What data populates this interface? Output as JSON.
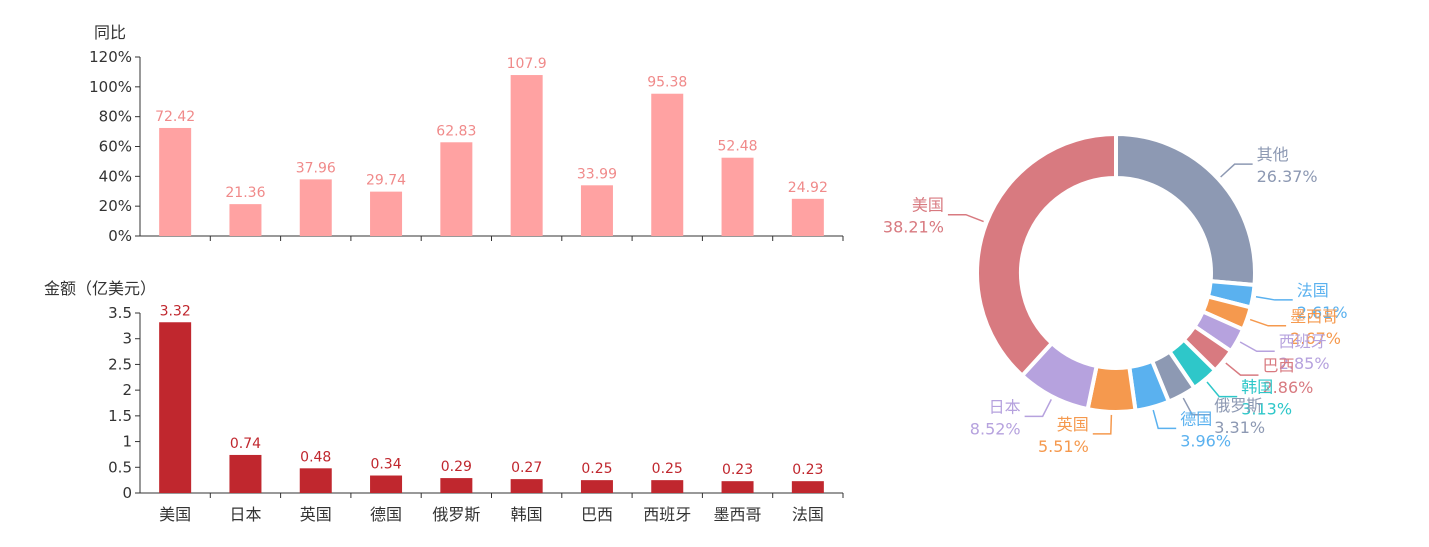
{
  "chart_data": [
    {
      "type": "bar",
      "ylabel": "同比",
      "categories": [
        "美国",
        "日本",
        "英国",
        "德国",
        "俄罗斯",
        "韩国",
        "巴西",
        "西班牙",
        "墨西哥",
        "法国"
      ],
      "values": [
        72.42,
        21.36,
        37.96,
        29.74,
        62.83,
        107.9,
        33.99,
        95.38,
        52.48,
        24.92
      ],
      "value_labels": [
        "72.42",
        "21.36",
        "37.96",
        "29.74",
        "62.83",
        "107.9",
        "33.99",
        "95.38",
        "52.48",
        "24.92"
      ],
      "ylim": [
        0,
        120
      ],
      "yticks": [
        "0%",
        "20%",
        "40%",
        "60%",
        "80%",
        "100%",
        "120%"
      ],
      "color": "#ffa2a2",
      "label_color": "#f08a8a",
      "grid": false
    },
    {
      "type": "bar",
      "ylabel": "金额（亿美元）",
      "categories": [
        "美国",
        "日本",
        "英国",
        "德国",
        "俄罗斯",
        "韩国",
        "巴西",
        "西班牙",
        "墨西哥",
        "法国"
      ],
      "values": [
        3.32,
        0.74,
        0.48,
        0.34,
        0.29,
        0.27,
        0.25,
        0.25,
        0.23,
        0.23
      ],
      "value_labels": [
        "3.32",
        "0.74",
        "0.48",
        "0.34",
        "0.29",
        "0.27",
        "0.25",
        "0.25",
        "0.23",
        "0.23"
      ],
      "ylim": [
        0,
        3.5
      ],
      "yticks": [
        "0",
        "0.5",
        "1",
        "1.5",
        "2",
        "2.5",
        "3",
        "3.5"
      ],
      "color": "#c0272e",
      "label_color": "#c0272e",
      "grid": false
    },
    {
      "type": "pie",
      "donut": true,
      "slices": [
        {
          "name": "其他",
          "value": 26.37,
          "label": "26.37%",
          "color": "#8d99b3"
        },
        {
          "name": "法国",
          "value": 2.61,
          "label": "2.61%",
          "color": "#5ab1ef"
        },
        {
          "name": "墨西哥",
          "value": 2.67,
          "label": "2.67%",
          "color": "#f5994e"
        },
        {
          "name": "西班牙",
          "value": 2.85,
          "label": "2.85%",
          "color": "#b6a2de"
        },
        {
          "name": "巴西",
          "value": 2.86,
          "label": "2.86%",
          "color": "#d87a80"
        },
        {
          "name": "韩国",
          "value": 3.13,
          "label": "3.13%",
          "color": "#2ec7c9"
        },
        {
          "name": "俄罗斯",
          "value": 3.31,
          "label": "3.31%",
          "color": "#8d99b3"
        },
        {
          "name": "德国",
          "value": 3.96,
          "label": "3.96%",
          "color": "#5ab1ef"
        },
        {
          "name": "英国",
          "value": 5.51,
          "label": "5.51%",
          "color": "#f5994e"
        },
        {
          "name": "日本",
          "value": 8.52,
          "label": "8.52%",
          "color": "#b6a2de"
        },
        {
          "name": "美国",
          "value": 38.21,
          "label": "38.21%",
          "color": "#d87a80"
        }
      ]
    }
  ]
}
